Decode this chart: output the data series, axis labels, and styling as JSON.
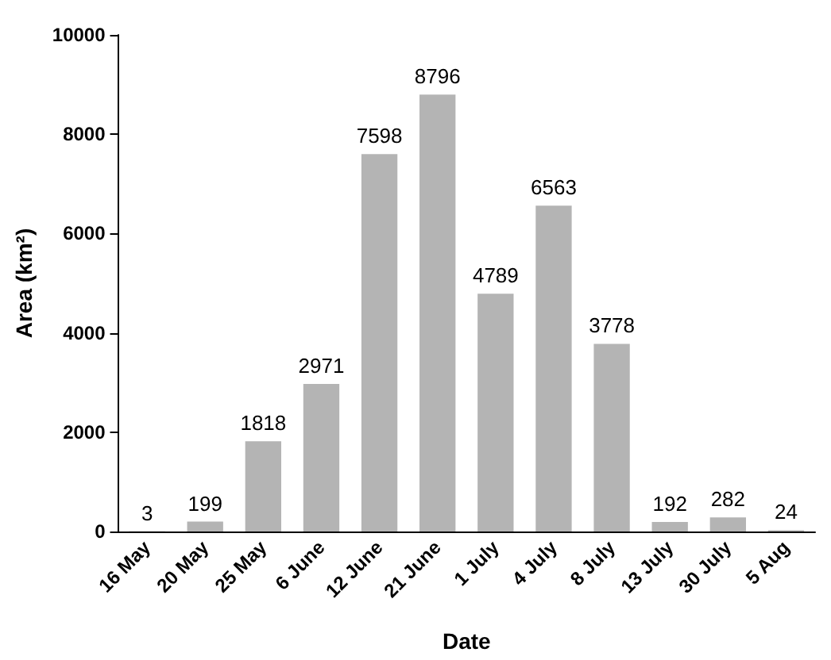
{
  "chart_data": {
    "type": "bar",
    "xlabel": "Date",
    "ylabel": "Area (km²)",
    "categories": [
      "16 May",
      "20 May",
      "25 May",
      "6 June",
      "12 June",
      "21 June",
      "1 July",
      "4 July",
      "8 July",
      "13 July",
      "30 July",
      "5 Aug"
    ],
    "values": [
      3,
      199,
      1818,
      2971,
      7598,
      8796,
      4789,
      6563,
      3778,
      192,
      282,
      24
    ],
    "color": "#b4b4b4",
    "ylim": [
      0,
      10000
    ],
    "yticks": [
      0,
      2000,
      4000,
      6000,
      8000,
      10000
    ],
    "grid": false,
    "data_labels": true
  }
}
